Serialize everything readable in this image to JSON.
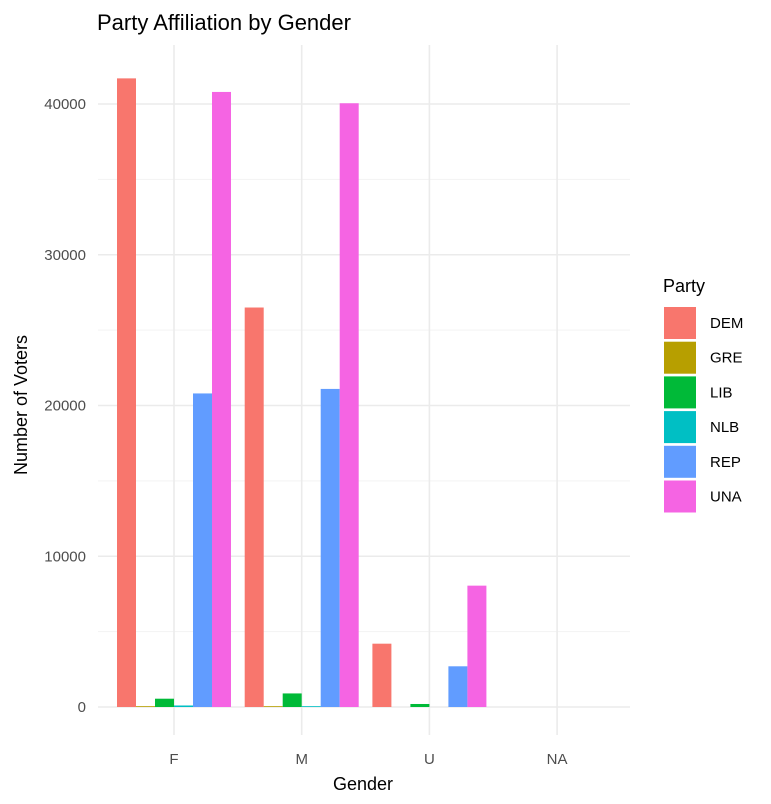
{
  "chart_data": {
    "type": "bar",
    "title": "Party Affiliation by Gender",
    "xlabel": "Gender",
    "ylabel": "Number of Voters",
    "categories": [
      "F",
      "M",
      "U",
      "NA"
    ],
    "series": [
      {
        "name": "DEM",
        "color": "#F8766D",
        "values": [
          41700,
          26500,
          4200,
          0
        ]
      },
      {
        "name": "GRE",
        "color": "#B79F00",
        "values": [
          50,
          40,
          0,
          0
        ]
      },
      {
        "name": "LIB",
        "color": "#00BA38",
        "values": [
          550,
          900,
          200,
          0
        ]
      },
      {
        "name": "NLB",
        "color": "#00BFC4",
        "values": [
          100,
          50,
          0,
          0
        ]
      },
      {
        "name": "REP",
        "color": "#619CFF",
        "values": [
          20800,
          21100,
          2700,
          0
        ]
      },
      {
        "name": "UNA",
        "color": "#F564E3",
        "values": [
          40800,
          40050,
          8050,
          0
        ]
      }
    ],
    "ylim": [
      0,
      43500
    ],
    "yticks": [
      0,
      10000,
      20000,
      30000,
      40000
    ],
    "ytick_labels": [
      "0",
      "10000",
      "20000",
      "30000",
      "40000"
    ],
    "grid": true,
    "legend": {
      "title": "Party",
      "position": "right"
    }
  }
}
